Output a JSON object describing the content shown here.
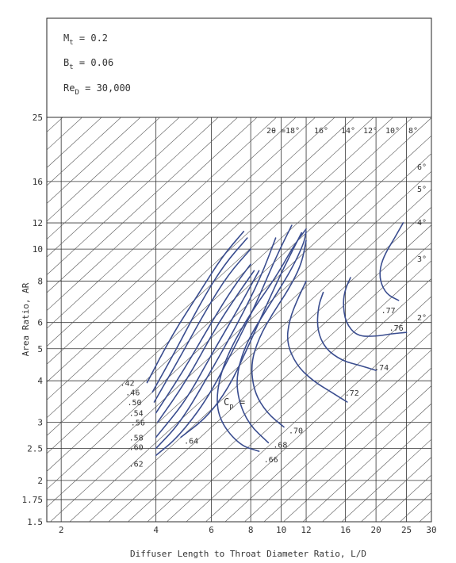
{
  "chart_data": {
    "type": "line",
    "title": "",
    "xlabel": "Diffuser Length to Throat Diameter Ratio, L/D",
    "ylabel": "Area Ratio, AR",
    "x_scale": "log",
    "y_scale": "log",
    "xlim": [
      1.8,
      30
    ],
    "ylim": [
      1.5,
      25
    ],
    "x_ticks": [
      2,
      4,
      6,
      8,
      10,
      12,
      16,
      20,
      25,
      30
    ],
    "y_ticks": [
      1.5,
      1.75,
      2,
      2.5,
      3,
      4,
      5,
      6,
      8,
      10,
      12,
      16,
      25
    ],
    "grid": true,
    "parameters": [
      {
        "sym": "M",
        "sub": "t",
        "value": "0.2"
      },
      {
        "sym": "B",
        "sub": "t",
        "value": "0.06"
      },
      {
        "sym": "Re",
        "sub": "D",
        "value": "30,000"
      }
    ],
    "cp_prefix_sym": "C",
    "cp_prefix_sub": "p",
    "cp_prefix_eq": "=",
    "angle_prefix": "2θ =",
    "angle_lines": [
      {
        "label": "18°",
        "slope": 1.0
      },
      {
        "label": "16°",
        "slope": 1.0
      },
      {
        "label": "14°",
        "slope": 1.0
      },
      {
        "label": "12°",
        "slope": 1.0
      },
      {
        "label": "10°",
        "slope": 1.0
      },
      {
        "label": "8°",
        "slope": 1.0
      },
      {
        "label": "6°",
        "slope": 1.0
      },
      {
        "label": "5°",
        "slope": 1.0
      },
      {
        "label": "4°",
        "slope": 1.0
      },
      {
        "label": "3°",
        "slope": 1.0
      },
      {
        "label": "2°",
        "slope": 1.0
      }
    ],
    "series": [
      {
        "name": ".42",
        "points": [
          [
            3.75,
            3.95
          ],
          [
            4.5,
            5.5
          ],
          [
            5.5,
            7.4
          ],
          [
            6.5,
            9.5
          ],
          [
            7.6,
            11.3
          ]
        ]
      },
      {
        "name": ".46",
        "points": [
          [
            3.9,
            3.7
          ],
          [
            4.6,
            4.9
          ],
          [
            5.6,
            7.0
          ],
          [
            6.6,
            9.0
          ],
          [
            7.8,
            10.8
          ]
        ]
      },
      {
        "name": ".50",
        "points": [
          [
            3.95,
            3.45
          ],
          [
            4.7,
            4.6
          ],
          [
            5.8,
            6.6
          ],
          [
            6.8,
            8.4
          ],
          [
            8.0,
            10.0
          ]
        ]
      },
      {
        "name": ".54",
        "points": [
          [
            4.0,
            3.2
          ],
          [
            4.9,
            4.3
          ],
          [
            6.0,
            6.0
          ],
          [
            7.0,
            7.6
          ],
          [
            8.0,
            9.0
          ]
        ]
      },
      {
        "name": ".56",
        "points": [
          [
            4.05,
            3.0
          ],
          [
            5.0,
            4.0
          ],
          [
            6.2,
            5.8
          ],
          [
            7.2,
            7.2
          ],
          [
            8.2,
            8.6
          ]
        ]
      },
      {
        "name": ".58",
        "points": [
          [
            4.0,
            2.7
          ],
          [
            5.0,
            3.5
          ],
          [
            6.0,
            4.8
          ],
          [
            7.3,
            6.6
          ],
          [
            8.5,
            8.6
          ]
        ]
      },
      {
        "name": ".60",
        "points": [
          [
            4.0,
            2.5
          ],
          [
            4.8,
            3.0
          ],
          [
            6.0,
            4.3
          ],
          [
            7.3,
            6.0
          ],
          [
            8.6,
            8.2
          ],
          [
            9.6,
            10.8
          ]
        ]
      },
      {
        "name": ".62",
        "points": [
          [
            4.0,
            2.38
          ],
          [
            4.7,
            2.7
          ],
          [
            5.8,
            3.5
          ],
          [
            7.0,
            4.9
          ],
          [
            8.3,
            6.8
          ],
          [
            9.6,
            9.4
          ],
          [
            10.8,
            11.8
          ]
        ]
      },
      {
        "name": ".64",
        "points": [
          [
            4.8,
            2.7
          ],
          [
            5.8,
            3.1
          ],
          [
            6.8,
            3.8
          ],
          [
            7.8,
            5.0
          ],
          [
            9.0,
            6.8
          ],
          [
            10.2,
            8.8
          ],
          [
            11.6,
            11.2
          ]
        ]
      },
      {
        "name": ".66",
        "points": [
          [
            8.5,
            2.45
          ],
          [
            7.4,
            2.55
          ],
          [
            6.4,
            3.0
          ],
          [
            6.2,
            3.6
          ],
          [
            6.6,
            4.6
          ],
          [
            7.8,
            6.2
          ],
          [
            9.6,
            8.2
          ],
          [
            11.0,
            10.3
          ],
          [
            12.0,
            11.5
          ]
        ]
      },
      {
        "name": ".68",
        "points": [
          [
            9.1,
            2.6
          ],
          [
            7.9,
            2.95
          ],
          [
            7.3,
            3.5
          ],
          [
            7.2,
            4.2
          ],
          [
            7.8,
            5.3
          ],
          [
            9.2,
            6.8
          ],
          [
            10.8,
            8.7
          ],
          [
            11.8,
            10.4
          ],
          [
            12.0,
            11.3
          ]
        ]
      },
      {
        "name": ".70",
        "points": [
          [
            10.2,
            2.9
          ],
          [
            9.0,
            3.2
          ],
          [
            8.2,
            3.7
          ],
          [
            8.0,
            4.5
          ],
          [
            8.5,
            5.4
          ],
          [
            9.4,
            6.4
          ],
          [
            10.6,
            7.6
          ],
          [
            11.6,
            9.0
          ],
          [
            12.0,
            10.6
          ]
        ]
      },
      {
        "name": ".72",
        "points": [
          [
            16.2,
            3.45
          ],
          [
            14.4,
            3.7
          ],
          [
            12.6,
            4.0
          ],
          [
            11.2,
            4.45
          ],
          [
            10.4,
            5.2
          ],
          [
            10.6,
            6.1
          ],
          [
            11.3,
            7.1
          ],
          [
            12.0,
            8.0
          ]
        ]
      },
      {
        "name": ".74",
        "points": [
          [
            20.0,
            4.3
          ],
          [
            17.8,
            4.45
          ],
          [
            15.6,
            4.6
          ],
          [
            13.8,
            5.0
          ],
          [
            13.0,
            5.7
          ],
          [
            13.1,
            6.7
          ],
          [
            13.6,
            7.4
          ]
        ]
      },
      {
        "name": ".76",
        "points": [
          [
            25.0,
            5.6
          ],
          [
            22.5,
            5.55
          ],
          [
            20.0,
            5.45
          ],
          [
            17.4,
            5.45
          ],
          [
            16.0,
            6.0
          ],
          [
            15.7,
            6.9
          ],
          [
            16.0,
            7.6
          ],
          [
            16.6,
            8.2
          ]
        ]
      },
      {
        "name": ".77",
        "points": [
          [
            23.6,
            7.0
          ],
          [
            21.6,
            7.3
          ],
          [
            20.6,
            8.0
          ],
          [
            20.6,
            8.8
          ],
          [
            21.4,
            9.7
          ],
          [
            22.8,
            10.7
          ],
          [
            24.4,
            12.0
          ]
        ]
      }
    ]
  }
}
